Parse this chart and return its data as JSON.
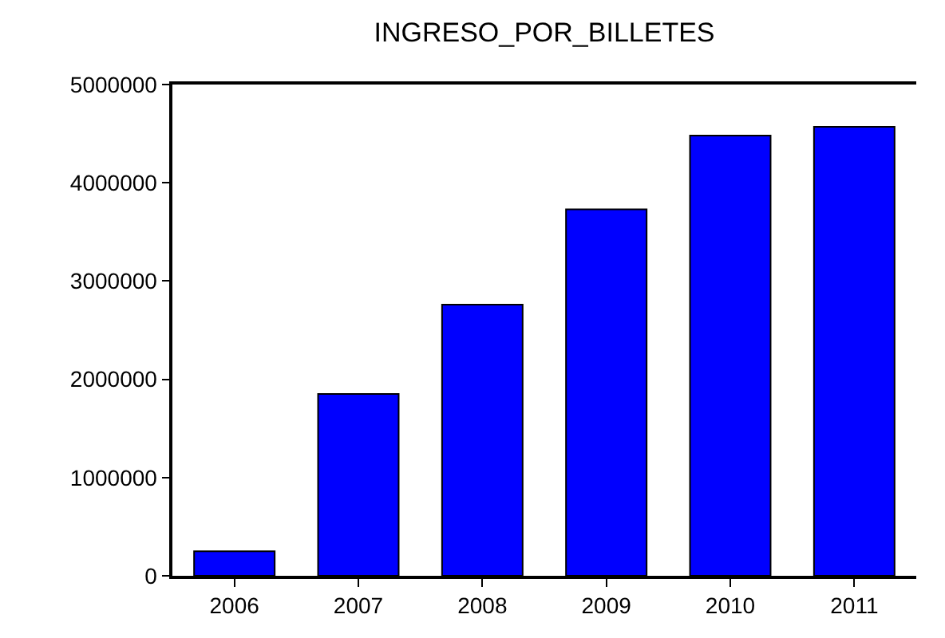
{
  "chart_data": {
    "type": "bar",
    "title": "INGRESO_POR_BILLETES",
    "categories": [
      "2006",
      "2007",
      "2008",
      "2009",
      "2010",
      "2011"
    ],
    "values": [
      250000,
      1850000,
      2760000,
      3730000,
      4480000,
      4570000
    ],
    "color": "#0000ff",
    "ylim": [
      0,
      5000000
    ],
    "yticks": [
      0,
      1000000,
      2000000,
      3000000,
      4000000,
      5000000
    ]
  }
}
